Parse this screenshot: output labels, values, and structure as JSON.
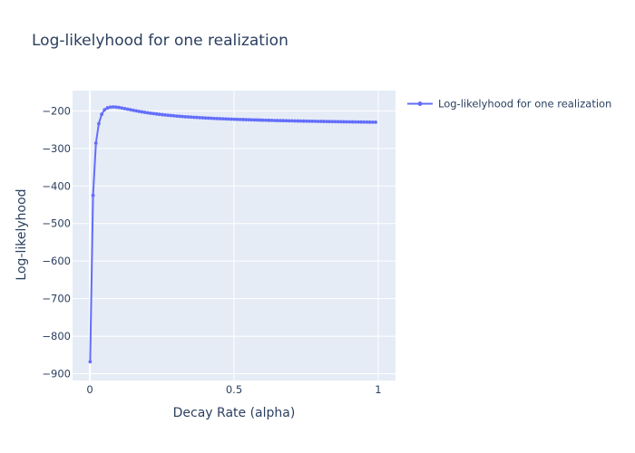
{
  "chart_data": {
    "type": "line",
    "title": "Log-likelyhood for one realization",
    "xlabel": "Decay Rate (alpha)",
    "ylabel": "Log-likelyhood",
    "xlim": [
      -0.06,
      1.06
    ],
    "ylim": [
      -918,
      -146
    ],
    "x_ticks": [
      0,
      0.5,
      1
    ],
    "x_tick_labels": [
      "0",
      "0.5",
      "1"
    ],
    "y_ticks": [
      -900,
      -800,
      -700,
      -600,
      -500,
      -400,
      -300,
      -200
    ],
    "y_tick_labels": [
      "−900",
      "−800",
      "−700",
      "−600",
      "−500",
      "−400",
      "−300",
      "−200"
    ],
    "grid": true,
    "legend": "right",
    "plot_bg": "#e5ecf6",
    "grid_color": "#ffffff",
    "series": [
      {
        "name": "Log-likelyhood for one realization",
        "color": "#636efa",
        "x": [
          0.001,
          0.011,
          0.021,
          0.031,
          0.041,
          0.051,
          0.061,
          0.071,
          0.081,
          0.091,
          0.101,
          0.111,
          0.121,
          0.131,
          0.141,
          0.151,
          0.161,
          0.171,
          0.181,
          0.191,
          0.201,
          0.211,
          0.221,
          0.231,
          0.241,
          0.251,
          0.261,
          0.271,
          0.281,
          0.291,
          0.301,
          0.311,
          0.321,
          0.331,
          0.341,
          0.351,
          0.361,
          0.371,
          0.381,
          0.391,
          0.401,
          0.411,
          0.421,
          0.431,
          0.441,
          0.451,
          0.461,
          0.471,
          0.481,
          0.491,
          0.501,
          0.511,
          0.521,
          0.531,
          0.541,
          0.551,
          0.561,
          0.571,
          0.581,
          0.591,
          0.601,
          0.611,
          0.621,
          0.631,
          0.641,
          0.651,
          0.661,
          0.671,
          0.681,
          0.691,
          0.701,
          0.711,
          0.721,
          0.731,
          0.741,
          0.751,
          0.761,
          0.771,
          0.781,
          0.791,
          0.801,
          0.811,
          0.821,
          0.831,
          0.841,
          0.851,
          0.861,
          0.871,
          0.881,
          0.891,
          0.901,
          0.911,
          0.921,
          0.931,
          0.941,
          0.951,
          0.961,
          0.971,
          0.981,
          0.991
        ],
        "y": [
          -868,
          -425,
          -286,
          -234,
          -209,
          -197,
          -192,
          -190,
          -189.5,
          -190,
          -191,
          -192.5,
          -194,
          -195.5,
          -197,
          -198.5,
          -200,
          -201.5,
          -202.8,
          -204,
          -205.2,
          -206.3,
          -207.3,
          -208.3,
          -209.2,
          -210.1,
          -210.9,
          -211.7,
          -212.4,
          -213.1,
          -213.8,
          -214.4,
          -215,
          -215.6,
          -216.1,
          -216.6,
          -217.1,
          -217.6,
          -218,
          -218.5,
          -218.9,
          -219.3,
          -219.7,
          -220.1,
          -220.4,
          -220.8,
          -221.1,
          -221.4,
          -221.7,
          -222,
          -222.3,
          -222.6,
          -222.9,
          -223.1,
          -223.4,
          -223.6,
          -223.9,
          -224.1,
          -224.3,
          -224.6,
          -224.8,
          -225,
          -225.2,
          -225.4,
          -225.6,
          -225.8,
          -226,
          -226.1,
          -226.3,
          -226.5,
          -226.6,
          -226.8,
          -227,
          -227.1,
          -227.3,
          -227.4,
          -227.6,
          -227.7,
          -227.8,
          -228,
          -228.1,
          -228.2,
          -228.4,
          -228.5,
          -228.6,
          -228.7,
          -228.8,
          -229,
          -229.1,
          -229.2,
          -229.3,
          -229.4,
          -229.5,
          -229.6,
          -229.7,
          -229.8,
          -229.9,
          -230,
          -230.1,
          -230.2
        ]
      }
    ]
  }
}
